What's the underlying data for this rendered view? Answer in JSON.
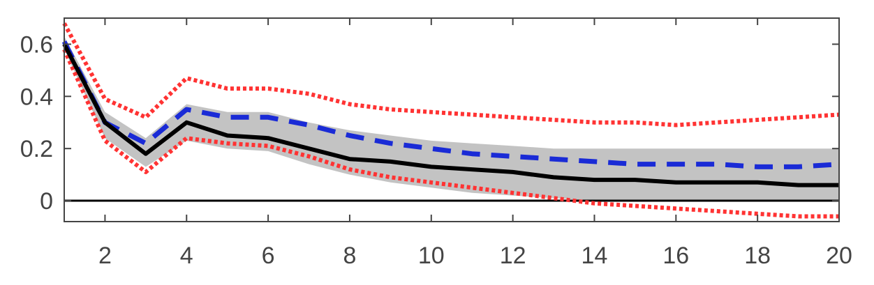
{
  "chart_data": {
    "type": "line",
    "title": "",
    "xlabel": "",
    "ylabel": "",
    "xlim": [
      1,
      20
    ],
    "ylim": [
      -0.08,
      0.7
    ],
    "x_ticks": [
      2,
      4,
      6,
      8,
      10,
      12,
      14,
      16,
      18,
      20
    ],
    "y_ticks": [
      0,
      0.2,
      0.4,
      0.6
    ],
    "x_tick_labels": [
      "2",
      "4",
      "6",
      "8",
      "10",
      "12",
      "14",
      "16",
      "18",
      "20"
    ],
    "y_tick_labels": [
      "0",
      "0.2",
      "0.4",
      "0.6"
    ],
    "grid": false,
    "legend": "none",
    "x": [
      1,
      2,
      3,
      4,
      5,
      6,
      7,
      8,
      9,
      10,
      11,
      12,
      13,
      14,
      15,
      16,
      17,
      18,
      19,
      20
    ],
    "band": {
      "color": "#b8b8b8",
      "lower": [
        0.58,
        0.24,
        0.13,
        0.23,
        0.2,
        0.19,
        0.14,
        0.1,
        0.07,
        0.05,
        0.03,
        0.02,
        0.01,
        0.0,
        0.0,
        0.0,
        0.0,
        0.0,
        0.0,
        0.0
      ],
      "upper": [
        0.63,
        0.34,
        0.24,
        0.37,
        0.34,
        0.34,
        0.3,
        0.27,
        0.25,
        0.23,
        0.22,
        0.21,
        0.2,
        0.2,
        0.2,
        0.2,
        0.2,
        0.2,
        0.2,
        0.2
      ]
    },
    "series": [
      {
        "color": "#ff3333",
        "style": "dotted",
        "values": [
          0.68,
          0.39,
          0.32,
          0.47,
          0.43,
          0.43,
          0.41,
          0.37,
          0.35,
          0.34,
          0.33,
          0.32,
          0.31,
          0.3,
          0.3,
          0.29,
          0.3,
          0.31,
          0.32,
          0.33
        ]
      },
      {
        "color": "#ff3333",
        "style": "dotted",
        "values": [
          0.58,
          0.23,
          0.11,
          0.24,
          0.22,
          0.21,
          0.17,
          0.12,
          0.09,
          0.07,
          0.05,
          0.03,
          0.01,
          -0.01,
          -0.02,
          -0.03,
          -0.04,
          -0.05,
          -0.06,
          -0.06
        ]
      },
      {
        "color": "#1a2bd6",
        "style": "dashed",
        "values": [
          0.61,
          0.3,
          0.22,
          0.35,
          0.32,
          0.32,
          0.29,
          0.25,
          0.22,
          0.2,
          0.18,
          0.17,
          0.16,
          0.15,
          0.14,
          0.14,
          0.14,
          0.13,
          0.13,
          0.14
        ]
      },
      {
        "color": "#000000",
        "style": "solid",
        "values": [
          0.6,
          0.3,
          0.18,
          0.3,
          0.25,
          0.24,
          0.2,
          0.16,
          0.15,
          0.13,
          0.12,
          0.11,
          0.09,
          0.08,
          0.08,
          0.07,
          0.07,
          0.07,
          0.06,
          0.06
        ]
      }
    ],
    "zero_line_color": "#000000",
    "colors": {
      "axis": "#444444",
      "background": "#ffffff"
    }
  }
}
